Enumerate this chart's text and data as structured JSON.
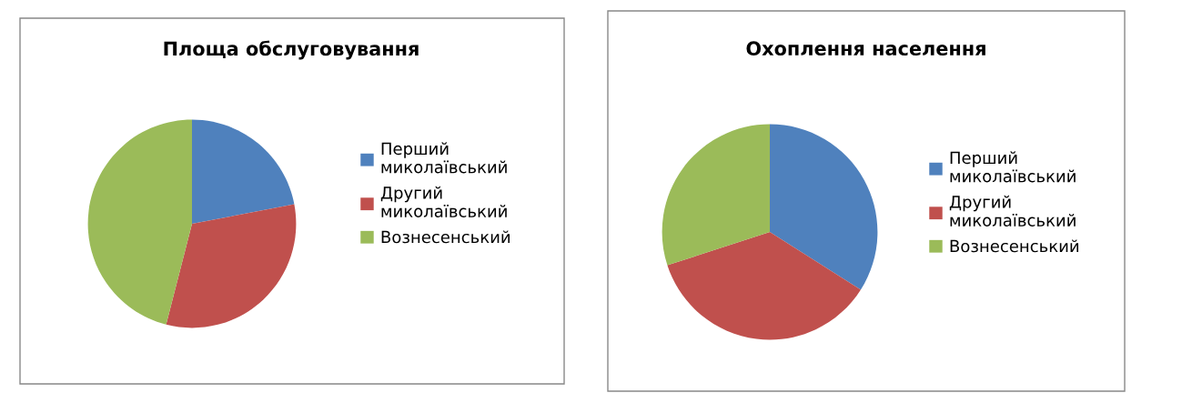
{
  "chart_data": [
    {
      "type": "pie",
      "title": "Площа обслуговування",
      "categories": [
        "Перший миколаївський",
        "Другий миколаївський",
        "Вознесенський"
      ],
      "values": [
        22,
        32,
        46
      ],
      "colors": [
        "#4f81bd",
        "#c0504d",
        "#9bbb59"
      ],
      "legend": "right"
    },
    {
      "type": "pie",
      "title": "Охоплення населення",
      "categories": [
        "Перший миколаївський",
        "Другий миколаївський",
        "Вознесенський"
      ],
      "values": [
        34,
        36,
        30
      ],
      "colors": [
        "#4f81bd",
        "#c0504d",
        "#9bbb59"
      ],
      "legend": "right"
    }
  ]
}
